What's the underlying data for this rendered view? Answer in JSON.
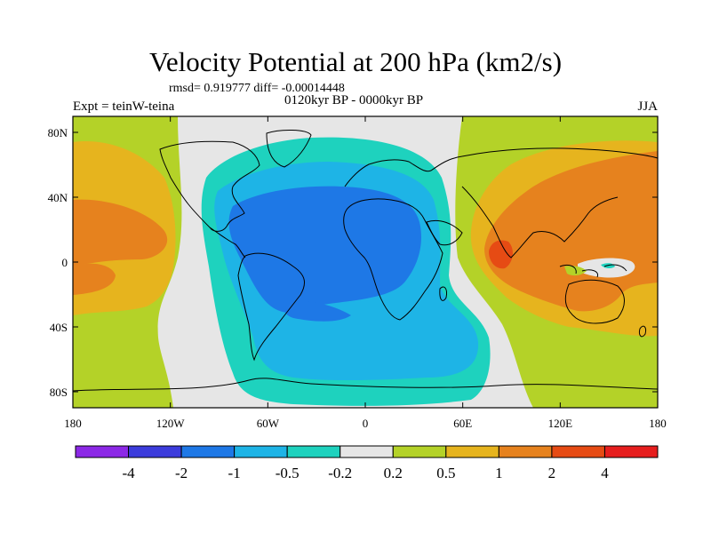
{
  "title": "Velocity Potential at 200 hPa (km2/s)",
  "stats_text": "rmsd= 0.919777 diff= -0.00014448",
  "left_string": "Expt = teinW-teina",
  "center_string": "0120kyr BP - 0000kyr BP",
  "right_string": "JJA",
  "map": {
    "y_ticks": [
      "80N",
      "40N",
      "0",
      "40S",
      "80S"
    ],
    "x_ticks": [
      "180",
      "120W",
      "60W",
      "0",
      "60E",
      "120E",
      "180"
    ]
  },
  "colorbar": {
    "colors": [
      "#8c28e6",
      "#3c3cdc",
      "#1e78e6",
      "#1eb4e6",
      "#1ed2be",
      "#e6e6e6",
      "#b4d228",
      "#e6b41e",
      "#e6821e",
      "#e64b14",
      "#e61e1e"
    ],
    "labels": [
      "-4",
      "-2",
      "-1",
      "-0.5",
      "-0.2",
      "0.2",
      "0.5",
      "1",
      "2",
      "4"
    ]
  },
  "field_colors": {
    "light_blue": "#1eb4e6",
    "mid_blue": "#1e78e6",
    "cyan": "#1ed2be",
    "neutral": "#e6e6e6",
    "light_green": "#b4d228",
    "yellow": "#e6b41e",
    "orange": "#e6821e",
    "red_orange": "#e64b14"
  }
}
